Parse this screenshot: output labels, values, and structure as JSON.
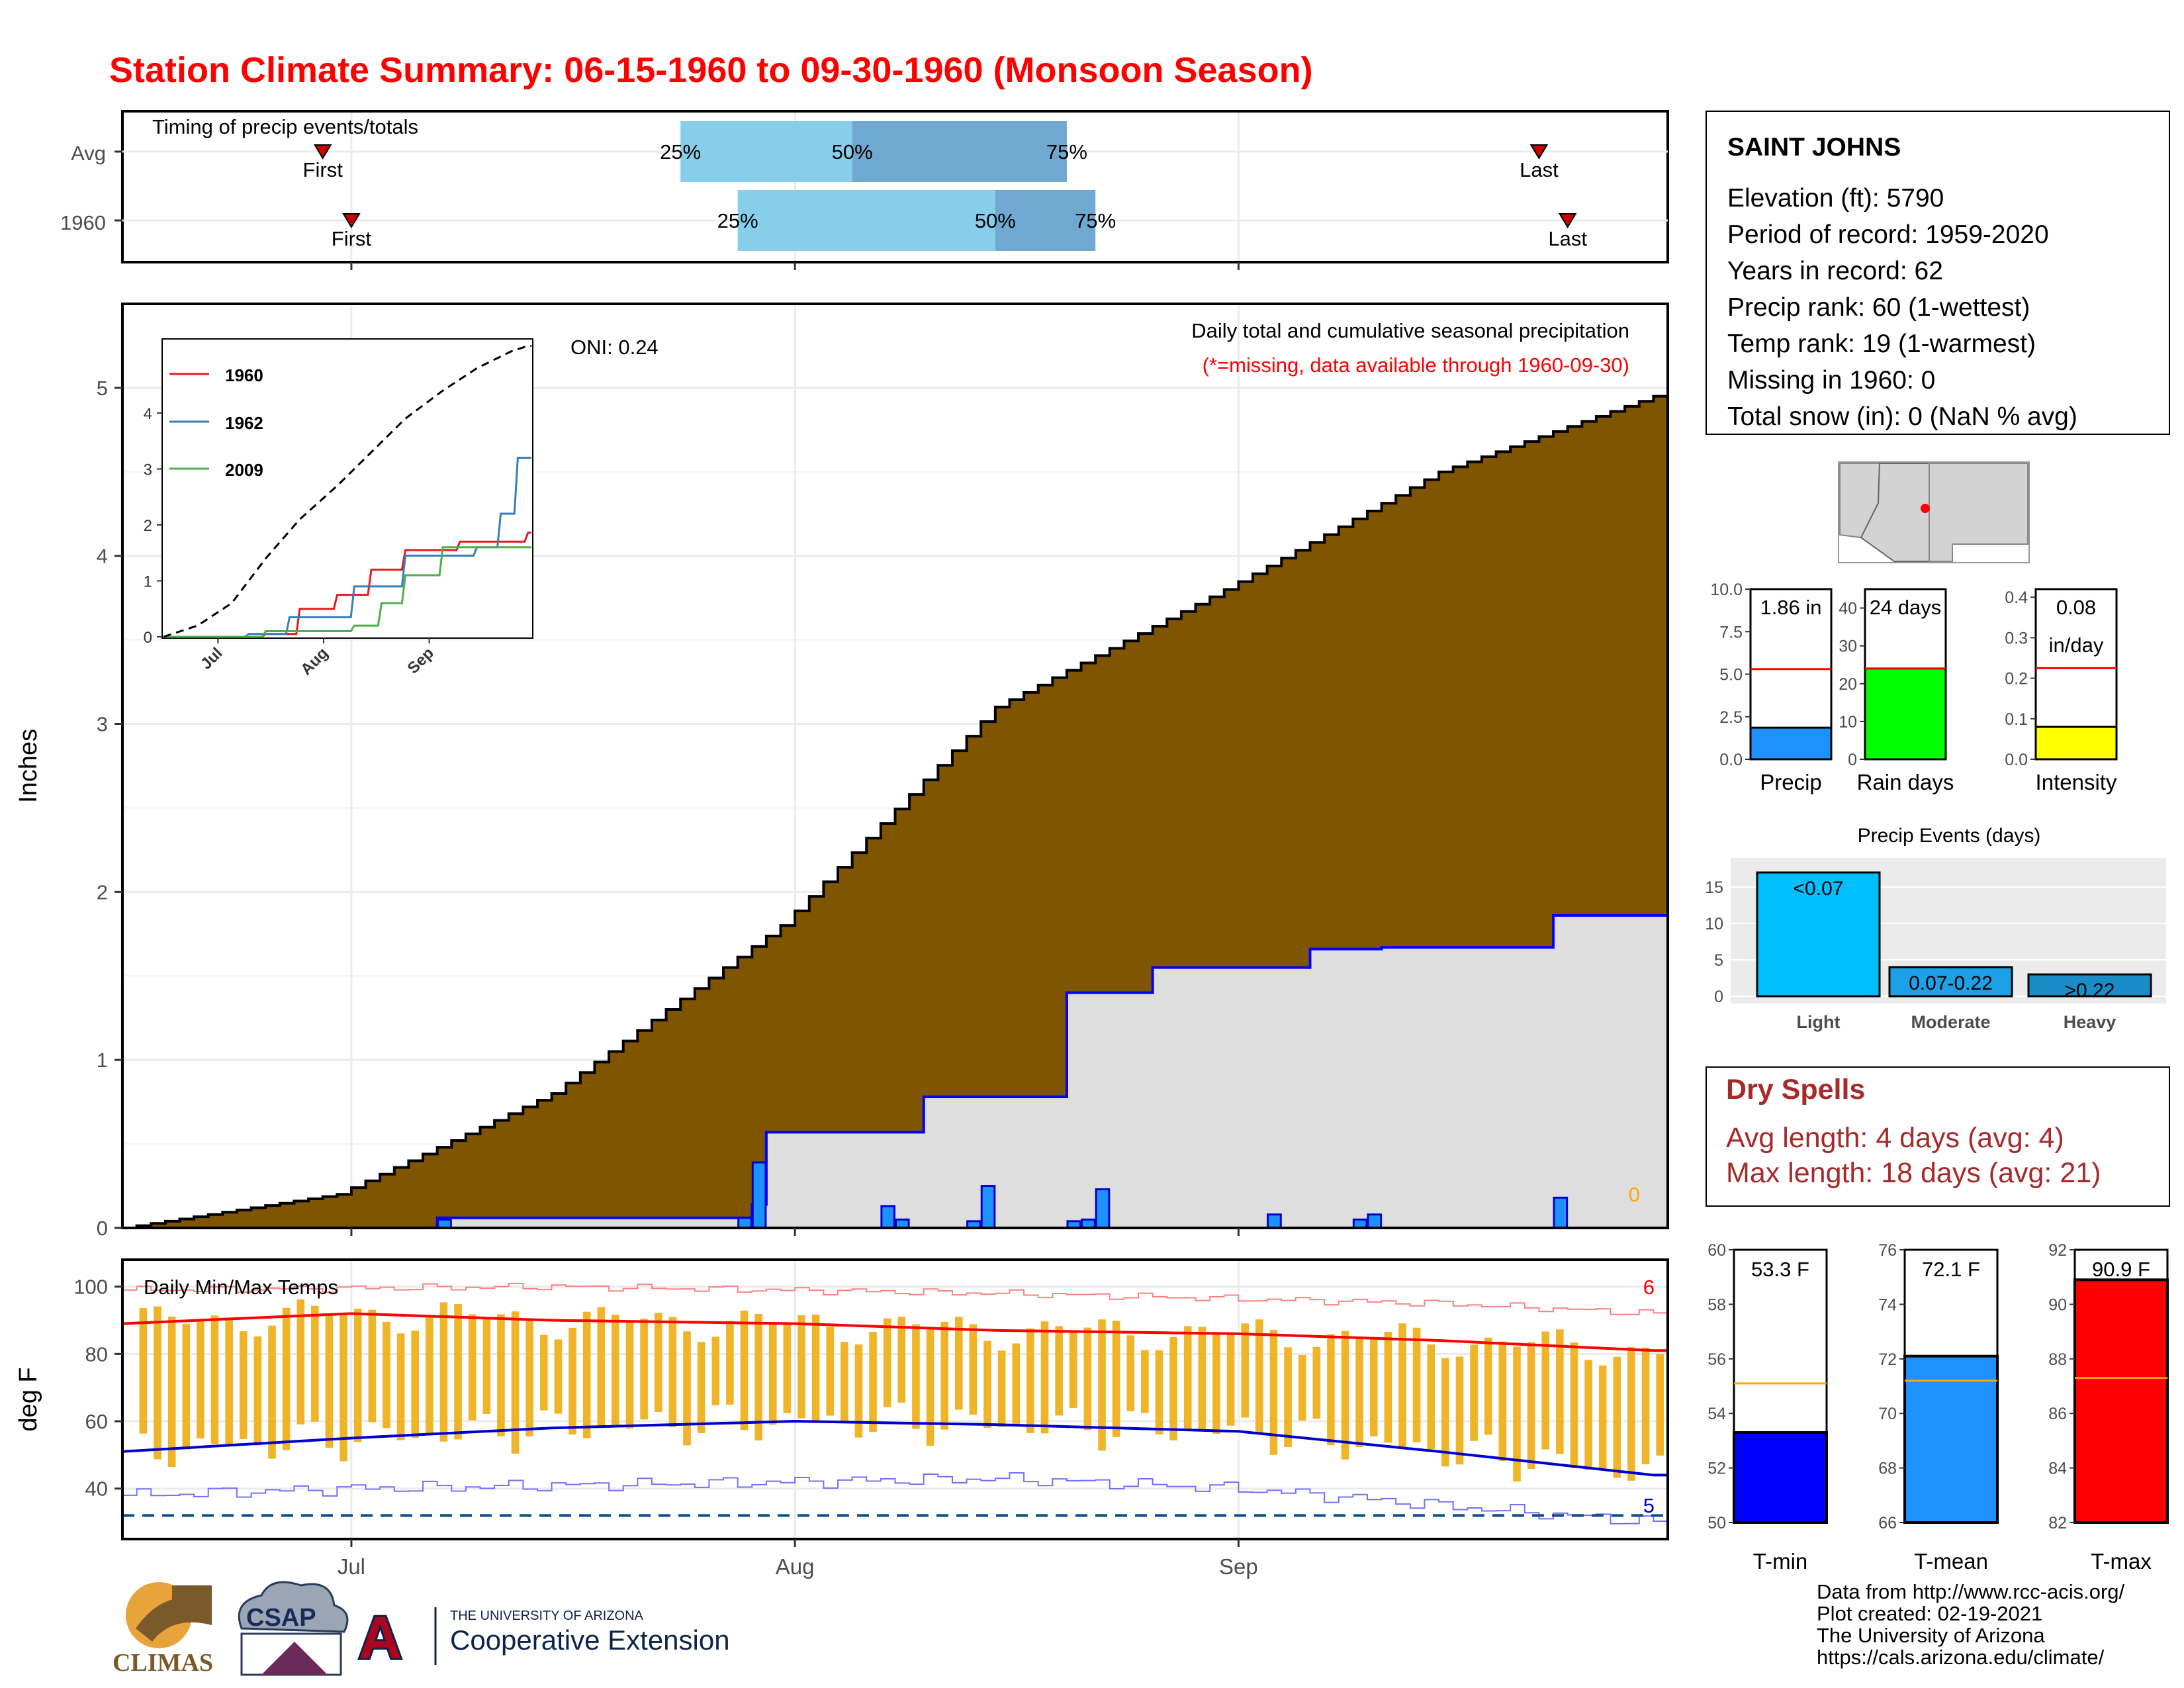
{
  "title": "Station Climate Summary: 06-15-1960 to 09-30-1960 (Monsoon Season)",
  "timing": {
    "title": "Timing of precip events/totals",
    "rows": [
      {
        "label": "Avg",
        "first_label": "First",
        "last_label": "Last",
        "first": "06-29",
        "last": "09-22",
        "p25": "07-24",
        "p50": "08-05",
        "p75": "08-20"
      },
      {
        "label": "1960",
        "first_label": "First",
        "last_label": "Last",
        "first": "07-01",
        "last": "09-24",
        "p25": "07-28",
        "p50": "08-15",
        "p75": "08-22"
      }
    ],
    "pct_labels": [
      "25%",
      "50%",
      "75%"
    ]
  },
  "precip_panel": {
    "ylabel": "Inches",
    "oni": "ONI: 0.24",
    "caption": "Daily total and cumulative seasonal precipitation",
    "missing_note": "(*=missing, data available through 1960-09-30)",
    "missing_count": "0",
    "yticks": [
      "0",
      "1",
      "2",
      "3",
      "4",
      "5"
    ],
    "xticks": [
      "Jul",
      "Aug",
      "Sep"
    ]
  },
  "inset": {
    "legend": [
      "1960",
      "1962",
      "2009"
    ],
    "yticks": [
      "0",
      "1",
      "2",
      "3",
      "4"
    ],
    "xticks": [
      "Jul",
      "Aug",
      "Sep"
    ]
  },
  "temp_panel": {
    "title": "Daily Min/Max Temps",
    "ylabel": "deg F",
    "yticks": [
      "40",
      "60",
      "80",
      "100"
    ],
    "xticks": [
      "Jul",
      "Aug",
      "Sep"
    ],
    "record_high_count": "6",
    "record_low_count": "5"
  },
  "station": {
    "name": "SAINT JOHNS",
    "lines": [
      "Elevation (ft): 5790",
      "Period of record: 1959-2020",
      "Years in record: 62",
      "Precip rank: 60 (1-wettest)",
      "Temp rank: 19 (1-warmest)",
      "Missing in 1960: 0",
      "Total snow (in): 0 (NaN % avg)"
    ]
  },
  "mini_bars": [
    {
      "label": "Precip",
      "value_text": "1.86 in",
      "value": 1.86,
      "avg": 5.3,
      "ymax": 10,
      "ticks": [
        "0.0",
        "2.5",
        "5.0",
        "7.5",
        "10.0"
      ],
      "tickvals": [
        0,
        2.5,
        5,
        7.5,
        10
      ],
      "color": "#1e90ff"
    },
    {
      "label": "Rain days",
      "value_text": "24 days",
      "value": 24,
      "avg": 24,
      "ymax": 45,
      "ticks": [
        "0",
        "10",
        "20",
        "30",
        "40"
      ],
      "tickvals": [
        0,
        10,
        20,
        30,
        40
      ],
      "color": "#00ff00"
    },
    {
      "label": "Intensity",
      "value_text": "0.08",
      "value_text2": "in/day",
      "value": 0.08,
      "avg": 0.225,
      "ymax": 0.42,
      "ticks": [
        "0.0",
        "0.1",
        "0.2",
        "0.3",
        "0.4"
      ],
      "tickvals": [
        0,
        0.1,
        0.2,
        0.3,
        0.4
      ],
      "color": "#ffff00"
    }
  ],
  "precip_events": {
    "title": "Precip Events (days)",
    "categories": [
      "Light",
      "Moderate",
      "Heavy"
    ],
    "bar_labels": [
      "<0.07",
      "0.07-0.22",
      ">0.22"
    ],
    "values": [
      17,
      4,
      3
    ],
    "colors": [
      "#00bfff",
      "#1ea0e6",
      "#1a8cc8"
    ],
    "yticks": [
      "0",
      "5",
      "10",
      "15"
    ]
  },
  "dry_spells": {
    "title": "Dry Spells",
    "avg_line": "Avg length: 4 days (avg: 4)",
    "max_line": "Max length: 18 days (avg: 21)"
  },
  "temp_bars": [
    {
      "label": "T-min",
      "value_text": "53.3 F",
      "value": 53.3,
      "avg": 55.1,
      "ymin": 50,
      "ymax": 60,
      "ticks": [
        "50",
        "52",
        "54",
        "56",
        "58",
        "60"
      ],
      "color": "#0000ff"
    },
    {
      "label": "T-mean",
      "value_text": "72.1 F",
      "value": 72.1,
      "avg": 71.2,
      "ymin": 66,
      "ymax": 76,
      "ticks": [
        "66",
        "68",
        "70",
        "72",
        "74",
        "76"
      ],
      "color": "#1e90ff"
    },
    {
      "label": "T-max",
      "value_text": "90.9 F",
      "value": 90.9,
      "avg": 87.3,
      "ymin": 82,
      "ymax": 92,
      "ticks": [
        "82",
        "84",
        "86",
        "88",
        "90",
        "92"
      ],
      "color": "#ff0000"
    }
  ],
  "logos": {
    "climas": "CLIMAS",
    "csap": "CSAP",
    "ua_small": "THE UNIVERSITY OF ARIZONA",
    "coop": "Cooperative Extension"
  },
  "footer": [
    "Data from http://www.rcc-acis.org/",
    "Plot created: 02-19-2021",
    "The University of Arizona",
    "https://cals.arizona.edu/climate/"
  ],
  "chart_data": [
    {
      "type": "area",
      "title": "Daily total and cumulative seasonal precipitation",
      "ylabel": "Inches",
      "ylim": [
        0,
        5.5
      ],
      "x_start": "06-15",
      "x_end": "09-30",
      "avg_cumulative": {
        "x": [
          "06-15",
          "06-30",
          "07-15",
          "07-31",
          "08-15",
          "08-31",
          "09-15",
          "09-30"
        ],
        "values": [
          0.0,
          0.2,
          0.8,
          1.8,
          3.1,
          3.8,
          4.5,
          4.95
        ]
      },
      "cumulative_1960": {
        "x": [
          "06-15",
          "07-07",
          "07-22",
          "07-29",
          "07-30",
          "08-10",
          "08-20",
          "08-26",
          "09-06",
          "09-11",
          "09-23",
          "09-30"
        ],
        "values": [
          0.0,
          0.06,
          0.06,
          0.14,
          0.57,
          0.78,
          1.4,
          1.55,
          1.66,
          1.67,
          1.86,
          1.86
        ]
      },
      "daily_1960": {
        "x": [
          "07-07",
          "07-28",
          "07-29",
          "08-07",
          "08-08",
          "08-13",
          "08-14",
          "08-20",
          "08-21",
          "08-22",
          "09-03",
          "09-09",
          "09-10",
          "09-23"
        ],
        "values": [
          0.05,
          0.06,
          0.39,
          0.13,
          0.05,
          0.04,
          0.25,
          0.04,
          0.05,
          0.23,
          0.08,
          0.05,
          0.08,
          0.18
        ]
      }
    },
    {
      "type": "line",
      "title": "",
      "ylim": [
        0,
        5.3
      ],
      "series": [
        {
          "name": "1960",
          "color": "#e41a1c",
          "x": [
            "06-15",
            "07-15",
            "07-25",
            "08-05",
            "08-15",
            "08-25",
            "09-10",
            "09-30"
          ],
          "values": [
            0.0,
            0.05,
            0.5,
            0.75,
            1.2,
            1.55,
            1.7,
            1.86
          ]
        },
        {
          "name": "1962",
          "color": "#377eb8",
          "x": [
            "06-15",
            "07-10",
            "07-22",
            "08-10",
            "08-25",
            "09-15",
            "09-22",
            "09-27",
            "09-30"
          ],
          "values": [
            0.0,
            0.05,
            0.35,
            0.9,
            1.45,
            1.6,
            2.2,
            3.2,
            3.2
          ]
        },
        {
          "name": "2009",
          "color": "#4daf4a",
          "x": [
            "06-15",
            "07-15",
            "08-10",
            "08-18",
            "08-25",
            "09-05",
            "09-30"
          ],
          "values": [
            0.0,
            0.1,
            0.2,
            0.6,
            1.1,
            1.6,
            1.6
          ]
        },
        {
          "x": [
            "06-15",
            "06-25",
            "07-05",
            "07-15",
            "07-25",
            "08-05",
            "08-15",
            "08-25",
            "09-05",
            "09-15",
            "09-25",
            "09-30"
          ],
          "values": [
            0.0,
            0.2,
            0.6,
            1.4,
            2.1,
            2.7,
            3.3,
            3.9,
            4.4,
            4.8,
            5.1,
            5.2
          ]
        }
      ]
    },
    {
      "type": "bar",
      "title": "Daily Min/Max Temps",
      "ylabel": "deg F",
      "ylim": [
        25,
        108
      ],
      "x_start": "06-15",
      "x_end": "09-30",
      "avg_max": {
        "x": [
          "06-15",
          "07-01",
          "07-15",
          "08-01",
          "08-15",
          "09-01",
          "09-15",
          "09-30"
        ],
        "values": [
          89,
          92,
          90,
          89,
          87,
          86,
          84,
          81
        ]
      },
      "avg_min": {
        "x": [
          "06-15",
          "07-01",
          "07-15",
          "08-01",
          "08-15",
          "09-01",
          "09-15",
          "09-30"
        ],
        "values": [
          51,
          55,
          58,
          60,
          59,
          57,
          51,
          44
        ]
      },
      "record_high": {
        "x": [
          "06-15",
          "07-15",
          "08-15",
          "09-15",
          "09-30"
        ],
        "values": [
          99,
          100,
          98,
          95,
          92
        ]
      },
      "record_low": {
        "x": [
          "06-15",
          "07-01",
          "08-01",
          "08-15",
          "09-01",
          "09-15",
          "09-30"
        ],
        "values": [
          38,
          40,
          42,
          43,
          40,
          35,
          30
        ]
      },
      "freezing_line": 32
    },
    {
      "type": "bar",
      "title": "Precip Events (days)",
      "categories": [
        "Light",
        "Moderate",
        "Heavy"
      ],
      "values": [
        17,
        4,
        3
      ]
    }
  ]
}
